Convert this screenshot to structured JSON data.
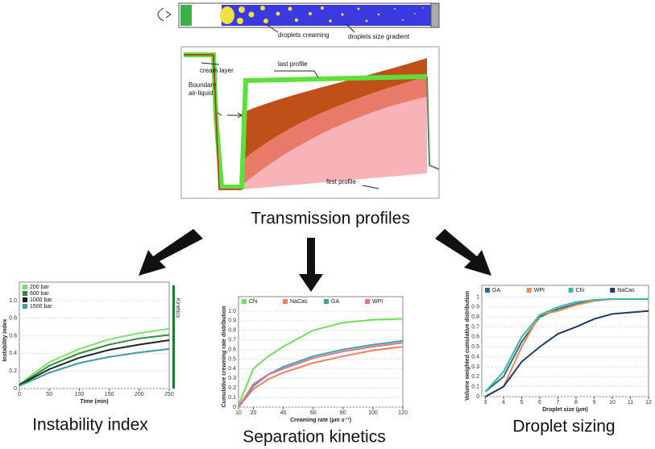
{
  "schematic": {
    "labels": [
      "droplets creaming",
      "droplets size gradient"
    ]
  },
  "transmission_profiles": {
    "caption": "Transmission profiles",
    "annotations": {
      "cream_layer": "cream layer",
      "last_profile": "last profile",
      "boundary": [
        "Boundary",
        "air-liquid"
      ],
      "first_profile": "first profile"
    }
  },
  "chart_data": [
    {
      "type": "line",
      "caption": "Instability index",
      "x_label": "Time (min)",
      "y_label": "Instability index",
      "annotation": "Kinetics",
      "x": [
        0,
        50,
        100,
        150,
        200,
        250
      ],
      "xlim": [
        0,
        250
      ],
      "xticks": [
        0,
        50,
        100,
        150,
        200,
        250
      ],
      "ylim": [
        0,
        1.1
      ],
      "yticks": [
        0,
        0.2,
        0.4,
        0.6,
        0.8,
        {
          "value": 1,
          "label": "1.0"
        }
      ],
      "grid": true,
      "legend": "upper left",
      "series": [
        {
          "name": "200 bar",
          "color": "#7ee06a",
          "values": [
            0.05,
            0.3,
            0.45,
            0.56,
            0.63,
            0.68
          ]
        },
        {
          "name": "600 bar",
          "color": "#2e8b3a",
          "values": [
            0.04,
            0.26,
            0.4,
            0.5,
            0.57,
            0.61
          ]
        },
        {
          "name": "1000 bar",
          "color": "#222222",
          "values": [
            0.04,
            0.22,
            0.35,
            0.44,
            0.5,
            0.55
          ]
        },
        {
          "name": "1500 bar",
          "color": "#3a9e9e",
          "values": [
            0.03,
            0.18,
            0.29,
            0.36,
            0.41,
            0.45
          ]
        }
      ]
    },
    {
      "type": "line",
      "caption": "Separation kinetics",
      "x_label": "Creaming rate (µm s⁻¹)",
      "y_label": "Cumulative creaming rate distribution",
      "x": [
        10,
        20,
        30,
        40,
        60,
        80,
        100,
        120
      ],
      "xlim": [
        10,
        120
      ],
      "xticks": [
        10,
        20,
        40,
        60,
        80,
        100,
        120
      ],
      "ylim": [
        0,
        1.05
      ],
      "yticks": [
        0,
        0.1,
        0.2,
        0.3,
        0.4,
        0.5,
        0.6,
        0.7,
        0.8,
        0.9,
        {
          "value": 1,
          "label": "1.0"
        }
      ],
      "grid": true,
      "legend": "top",
      "series": [
        {
          "name": "Chi",
          "color": "#6ee05a",
          "values": [
            0.02,
            0.4,
            0.53,
            0.63,
            0.8,
            0.88,
            0.91,
            0.92
          ]
        },
        {
          "name": "NaCas",
          "color": "#f08060",
          "values": [
            0,
            0.19,
            0.29,
            0.36,
            0.46,
            0.53,
            0.59,
            0.63
          ]
        },
        {
          "name": "GA",
          "color": "#3aa8a0",
          "values": [
            0,
            0.22,
            0.34,
            0.42,
            0.53,
            0.6,
            0.65,
            0.69
          ]
        },
        {
          "name": "WPI",
          "color": "#e0709a",
          "values": [
            0,
            0.24,
            0.34,
            0.4,
            0.51,
            0.58,
            0.63,
            0.67
          ]
        }
      ]
    },
    {
      "type": "line",
      "caption": "Droplet sizing",
      "x_label": "Droplet size (µm)",
      "y_label": "Volume weighted cumulative distribution",
      "x": [
        3,
        4,
        5,
        6,
        7,
        8,
        9,
        10,
        12
      ],
      "xlim": [
        2.8,
        12
      ],
      "xticks": [
        3,
        4,
        5,
        6,
        7,
        8,
        9,
        10,
        11,
        12
      ],
      "ylim": [
        0,
        1.02
      ],
      "yticks": [
        0,
        0.1,
        0.2,
        0.3,
        0.4,
        0.5,
        0.6,
        0.7,
        0.8,
        0.9,
        1
      ],
      "grid": true,
      "legend": "top",
      "series": [
        {
          "name": "GA",
          "color": "#2a6a8a",
          "values": [
            0.05,
            0.2,
            0.55,
            0.8,
            0.88,
            0.93,
            0.97,
            0.98,
            0.98
          ]
        },
        {
          "name": "WPI",
          "color": "#f08a50",
          "values": [
            0,
            0.1,
            0.5,
            0.82,
            0.86,
            0.92,
            0.96,
            0.98,
            0.98
          ]
        },
        {
          "name": "Chi",
          "color": "#3ab8a8",
          "values": [
            0.05,
            0.25,
            0.6,
            0.82,
            0.9,
            0.95,
            0.97,
            0.98,
            0.98
          ]
        },
        {
          "name": "NaCas",
          "color": "#1a3a6a",
          "values": [
            0,
            0.1,
            0.35,
            0.5,
            0.63,
            0.7,
            0.78,
            0.83,
            0.86
          ]
        }
      ]
    }
  ]
}
